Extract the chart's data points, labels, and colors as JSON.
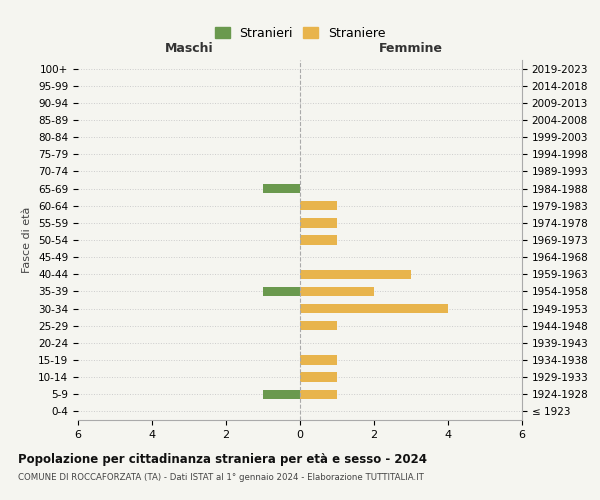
{
  "age_groups": [
    "100+",
    "95-99",
    "90-94",
    "85-89",
    "80-84",
    "75-79",
    "70-74",
    "65-69",
    "60-64",
    "55-59",
    "50-54",
    "45-49",
    "40-44",
    "35-39",
    "30-34",
    "25-29",
    "20-24",
    "15-19",
    "10-14",
    "5-9",
    "0-4"
  ],
  "birth_years": [
    "≤ 1923",
    "1924-1928",
    "1929-1933",
    "1934-1938",
    "1939-1943",
    "1944-1948",
    "1949-1953",
    "1954-1958",
    "1959-1963",
    "1964-1968",
    "1969-1973",
    "1974-1978",
    "1979-1983",
    "1984-1988",
    "1989-1993",
    "1994-1998",
    "1999-2003",
    "2004-2008",
    "2009-2013",
    "2014-2018",
    "2019-2023"
  ],
  "maschi_stranieri": [
    0,
    0,
    0,
    0,
    0,
    0,
    0,
    1,
    0,
    0,
    0,
    0,
    0,
    1,
    0,
    0,
    0,
    0,
    0,
    1,
    0
  ],
  "femmine_straniere": [
    0,
    0,
    0,
    0,
    0,
    0,
    0,
    0,
    1,
    1,
    1,
    0,
    3,
    2,
    4,
    1,
    0,
    1,
    1,
    1,
    0
  ],
  "xlim": 6,
  "color_maschi": "#6a994e",
  "color_femmine": "#e8b44c",
  "background_color": "#f5f5f0",
  "grid_color": "#cccccc",
  "title": "Popolazione per cittadinanza straniera per età e sesso - 2024",
  "subtitle": "COMUNE DI ROCCAFORZATA (TA) - Dati ISTAT al 1° gennaio 2024 - Elaborazione TUTTITALIA.IT",
  "left_header": "Maschi",
  "right_header": "Femmine",
  "left_yaxis_label": "Fasce di età",
  "legend_maschi": "Stranieri",
  "legend_femmine": "Straniere"
}
